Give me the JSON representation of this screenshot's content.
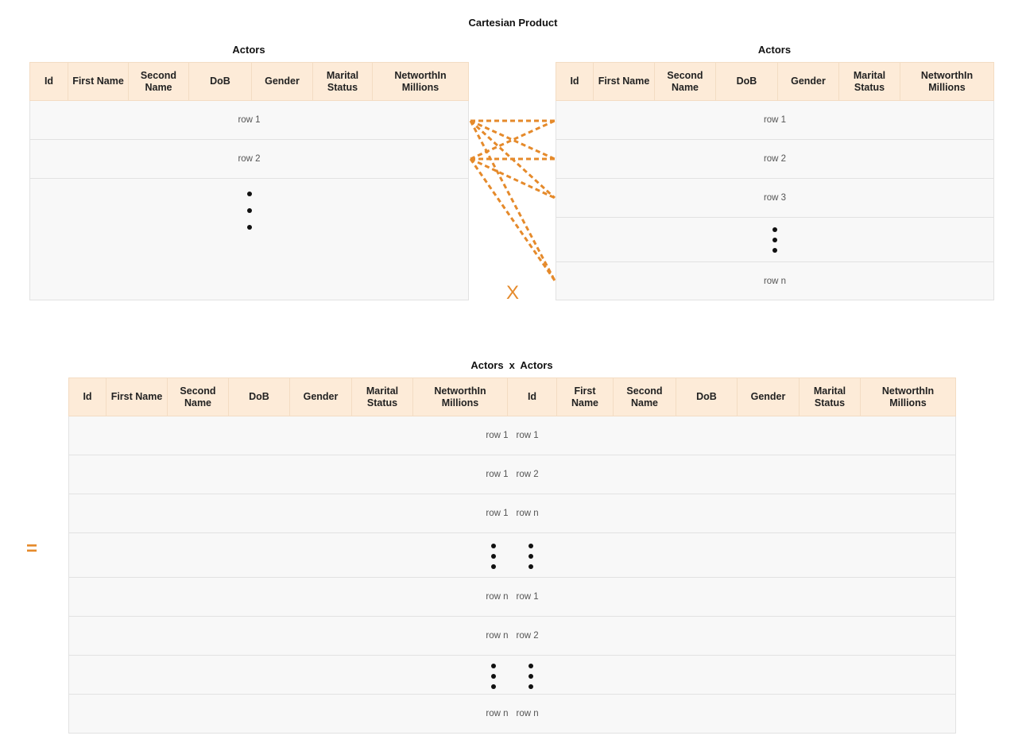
{
  "title": "Cartesian Product",
  "left_table": {
    "caption": "Actors",
    "columns": [
      "Id",
      "First Name",
      "Second Name",
      "DoB",
      "Gender",
      "Marital Status",
      "NetworthIn Millions"
    ],
    "rows": [
      "row 1",
      "row 2"
    ]
  },
  "right_table": {
    "caption": "Actors",
    "columns": [
      "Id",
      "First Name",
      "Second Name",
      "DoB",
      "Gender",
      "Marital Status",
      "NetworthIn Millions"
    ],
    "rows": [
      "row 1",
      "row 2",
      "row 3",
      "row n"
    ]
  },
  "operator_times": "X",
  "operator_equals": "=",
  "result_table": {
    "caption_left": "Actors",
    "caption_op": "x",
    "caption_right": "Actors",
    "columns": [
      "Id",
      "First Name",
      "Second Name",
      "DoB",
      "Gender",
      "Marital Status",
      "NetworthIn Millions",
      "Id",
      "First Name",
      "Second Name",
      "DoB",
      "Gender",
      "Marital Status",
      "NetworthIn Millions"
    ],
    "rows": [
      {
        "left": "row 1",
        "right": "row 1"
      },
      {
        "left": "row 1",
        "right": "row 2"
      },
      {
        "left": "row 1",
        "right": "row n"
      },
      {
        "left": "row n",
        "right": "row 1"
      },
      {
        "left": "row n",
        "right": "row 2"
      },
      {
        "left": "row n",
        "right": "row n"
      }
    ]
  },
  "colors": {
    "accent": "#e58a2b",
    "header_bg": "#fdebd8",
    "row_bg": "#f8f8f8",
    "border": "#e2e2e2"
  }
}
